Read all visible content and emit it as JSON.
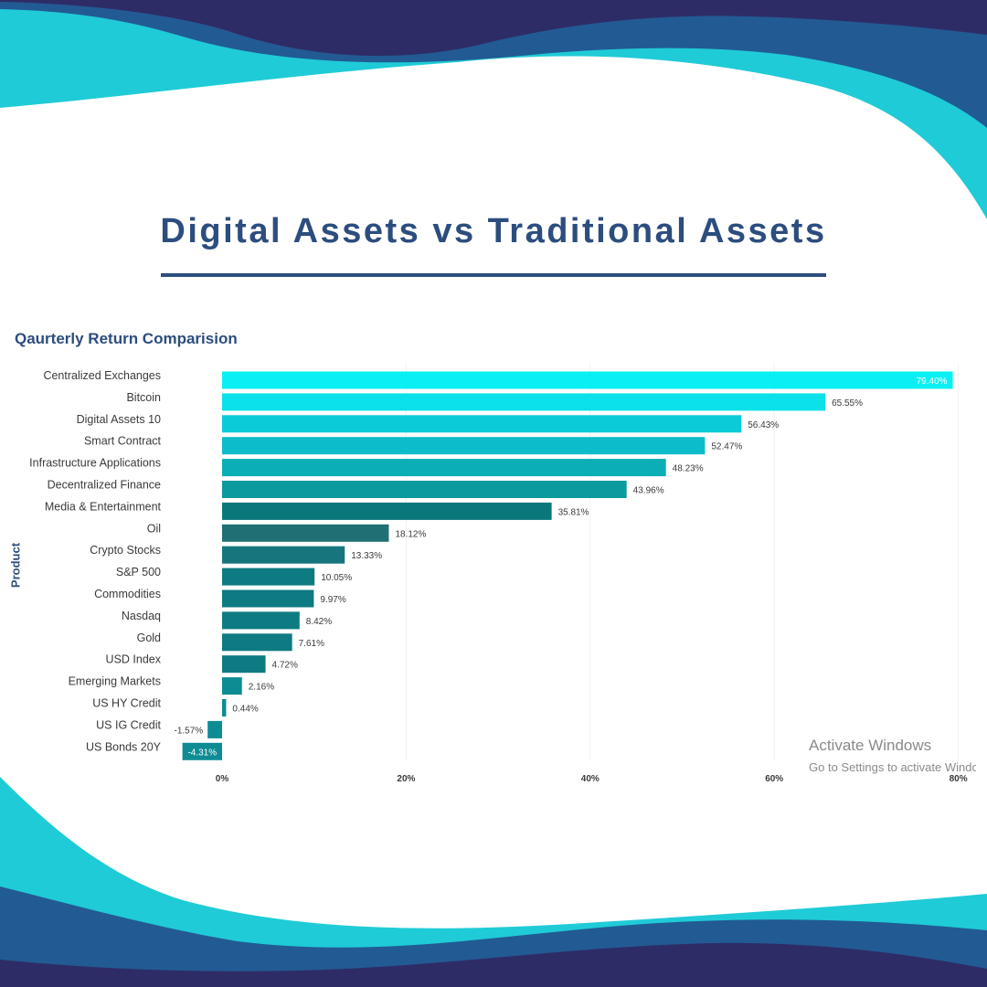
{
  "page": {
    "title": "Digital Assets vs Traditional Assets",
    "watermark_line1": "Activate Windows",
    "watermark_line2": "Go to Settings to activate Windows."
  },
  "colors": {
    "title": "#2c4d7e",
    "wave_dark": "#2e2c66",
    "wave_mid": "#225a94",
    "wave_light": "#1fcbd6"
  },
  "chart_data": {
    "type": "bar",
    "orientation": "horizontal",
    "title": "Qaurterly Return Comparision",
    "ylabel": "Product",
    "xlabel": "",
    "xlim": [
      -5,
      80
    ],
    "x_ticks": [
      {
        "value": 0,
        "label": "0%"
      },
      {
        "value": 20,
        "label": "20%"
      },
      {
        "value": 40,
        "label": "40%"
      },
      {
        "value": 60,
        "label": "60%"
      },
      {
        "value": 80,
        "label": "80%"
      }
    ],
    "grid": true,
    "categories": [
      "Centralized Exchanges",
      "Bitcoin",
      "Digital Assets 10",
      "Smart Contract",
      "Infrastructure Applications",
      "Decentralized Finance",
      "Media & Entertainment",
      "Oil",
      "Crypto Stocks",
      "S&P 500",
      "Commodities",
      "Nasdaq",
      "Gold",
      "USD Index",
      "Emerging Markets",
      "US HY Credit",
      "US IG Credit",
      "US Bonds 20Y"
    ],
    "values": [
      79.4,
      65.55,
      56.43,
      52.47,
      48.23,
      43.96,
      35.81,
      18.12,
      13.33,
      10.05,
      9.97,
      8.42,
      7.61,
      4.72,
      2.16,
      0.44,
      -1.57,
      -4.31
    ],
    "data_labels": [
      "79.40%",
      "65.55%",
      "56.43%",
      "52.47%",
      "48.23%",
      "43.96%",
      "35.81%",
      "18.12%",
      "13.33%",
      "10.05%",
      "9.97%",
      "8.42%",
      "7.61%",
      "4.72%",
      "2.16%",
      "0.44%",
      "-1.57%",
      "-4.31%"
    ],
    "bar_colors": [
      "#0af0f2",
      "#0be1e8",
      "#0bcbd8",
      "#0cbcca",
      "#0aaeb4",
      "#0b9a9e",
      "#0a777c",
      "#1f6f74",
      "#17757d",
      "#0e7a82",
      "#0e7a82",
      "#0e7a82",
      "#0e7a82",
      "#0e7a82",
      "#0e8c94",
      "#0e8c94",
      "#0e8c94",
      "#0e8c94"
    ]
  }
}
